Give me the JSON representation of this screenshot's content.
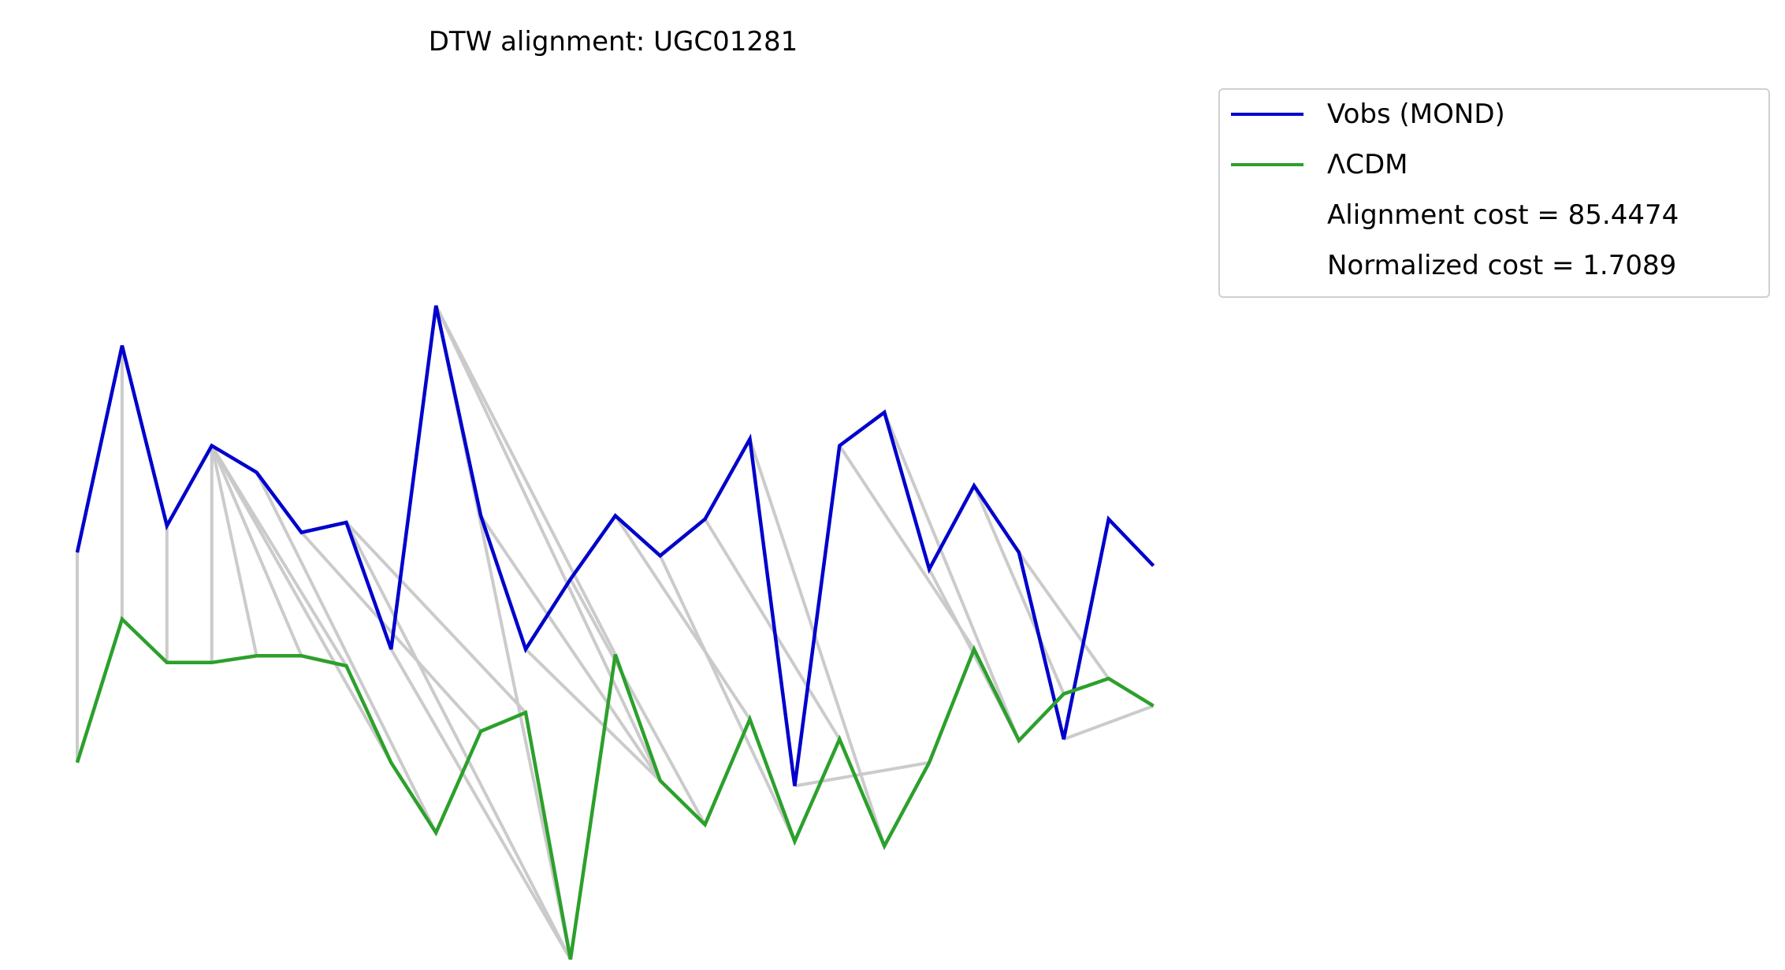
{
  "chart_data": {
    "type": "line",
    "title": "DTW alignment: UGC01281",
    "xlabel": "",
    "ylabel": "",
    "axes_visible": false,
    "grid": false,
    "legend_position": "top-right, outside plot",
    "colors": {
      "vobs": "#0000cc",
      "lcdm": "#2ca02c",
      "alignment": "#c8c8c8"
    },
    "series": [
      {
        "name": "Vobs (MOND)",
        "values": [
          4.4,
          7.5,
          4.8,
          6.0,
          5.6,
          4.7,
          4.85,
          2.95,
          8.1,
          4.95,
          2.95,
          4.0,
          4.95,
          4.35,
          4.9,
          6.1,
          0.9,
          6.0,
          6.5,
          4.15,
          5.4,
          4.4,
          1.6,
          4.9,
          4.2
        ]
      },
      {
        "name": "ΛCDM",
        "values": [
          1.25,
          3.4,
          2.75,
          2.75,
          2.85,
          2.85,
          2.7,
          1.25,
          0.2,
          1.72,
          2.0,
          -1.7,
          2.87,
          0.98,
          0.32,
          1.9,
          0.07,
          1.6,
          -0.0,
          1.25,
          2.95,
          1.58,
          2.28,
          2.51,
          2.1
        ]
      }
    ],
    "alignment_path": [
      [
        0,
        0
      ],
      [
        1,
        1
      ],
      [
        2,
        2
      ],
      [
        3,
        3
      ],
      [
        3,
        4
      ],
      [
        3,
        5
      ],
      [
        3,
        6
      ],
      [
        3,
        7
      ],
      [
        4,
        8
      ],
      [
        5,
        9
      ],
      [
        6,
        10
      ],
      [
        6,
        11
      ],
      [
        7,
        11
      ],
      [
        8,
        11
      ],
      [
        8,
        12
      ],
      [
        8,
        13
      ],
      [
        9,
        13
      ],
      [
        10,
        14
      ],
      [
        11,
        14
      ],
      [
        12,
        15
      ],
      [
        13,
        16
      ],
      [
        14,
        17
      ],
      [
        15,
        18
      ],
      [
        16,
        19
      ],
      [
        17,
        20
      ],
      [
        18,
        21
      ],
      [
        19,
        21
      ],
      [
        20,
        22
      ],
      [
        21,
        23
      ],
      [
        22,
        24
      ]
    ],
    "legend_entries": [
      "Vobs (MOND)",
      "ΛCDM",
      "Alignment cost = 85.4474",
      "Normalized cost = 1.7089"
    ]
  }
}
